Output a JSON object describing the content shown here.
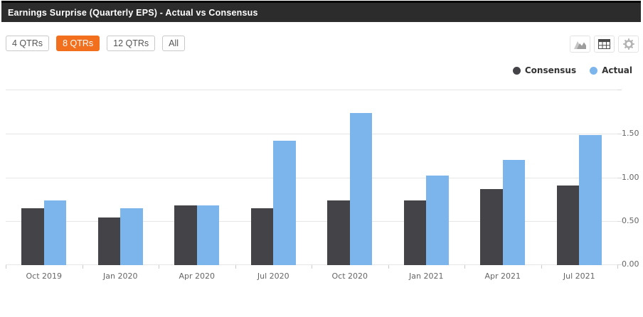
{
  "header": {
    "title": "Earnings Surprise (Quarterly EPS) - Actual vs Consensus"
  },
  "toolbar": {
    "range_buttons": [
      {
        "label": "4 QTRs",
        "active": false
      },
      {
        "label": "8 QTRs",
        "active": true
      },
      {
        "label": "12 QTRs",
        "active": false
      },
      {
        "label": "All",
        "active": false
      }
    ],
    "active_color": "#f2701d",
    "icon_buttons": [
      {
        "icon": "area-chart"
      },
      {
        "icon": "table"
      },
      {
        "icon": "gear"
      }
    ]
  },
  "legend": {
    "items": [
      {
        "label": "Consensus",
        "color": "#434348"
      },
      {
        "label": "Actual",
        "color": "#7cb5ec"
      }
    ]
  },
  "chart_data": {
    "type": "bar",
    "title": "Earnings Surprise (Quarterly EPS) - Actual vs Consensus",
    "categories": [
      "Oct 2019",
      "Jan 2020",
      "Apr 2020",
      "Jul 2020",
      "Oct 2020",
      "Jan 2021",
      "Apr 2021",
      "Jul 2021"
    ],
    "series": [
      {
        "name": "Consensus",
        "color": "#434348",
        "values": [
          0.65,
          0.54,
          0.68,
          0.65,
          0.74,
          0.74,
          0.87,
          0.91
        ]
      },
      {
        "name": "Actual",
        "color": "#7cb5ec",
        "values": [
          0.74,
          0.65,
          0.68,
          1.42,
          1.73,
          1.02,
          1.2,
          1.48
        ]
      }
    ],
    "xlabel": "",
    "ylabel": "",
    "ylim": [
      0,
      2.0
    ],
    "yticks": [
      {
        "value": 0,
        "label": "0.00"
      },
      {
        "value": 0.5,
        "label": "0.50"
      },
      {
        "value": 1.0,
        "label": "1.00"
      },
      {
        "value": 1.5,
        "label": "1.50"
      },
      {
        "value": 2.0,
        "label": ""
      }
    ],
    "grid": true,
    "legend_position": "top-right"
  }
}
